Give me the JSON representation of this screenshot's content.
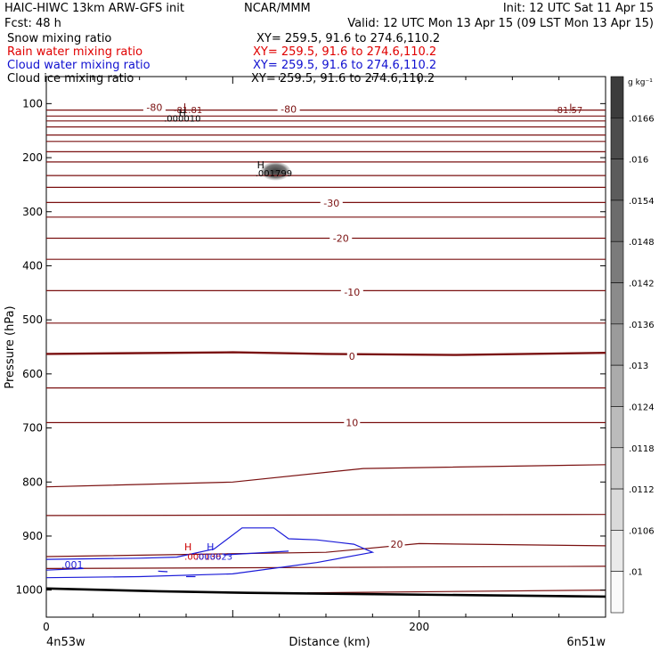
{
  "header": {
    "model": "HAIC-HIWC 13km ARW-GFS init",
    "center": "NCAR/MMM",
    "init": "Init: 12 UTC Sat 11 Apr 15",
    "fcst": "Fcst:    48 h",
    "valid": "Valid: 12 UTC Mon 13 Apr 15 (09 LST Mon 13 Apr 15)"
  },
  "fields": [
    {
      "label": "Snow mixing ratio",
      "xy": "XY= 259.5, 91.6 to 274.6,110.2",
      "color": "#000000"
    },
    {
      "label": "Rain water mixing ratio",
      "xy": "XY= 259.5, 91.6 to 274.6,110.2",
      "color": "#e00000"
    },
    {
      "label": "Cloud water mixing ratio",
      "xy": "XY= 259.5, 91.6 to 274.6,110.2",
      "color": "#1010d0"
    },
    {
      "label": "Cloud ice mixing ratio",
      "xy": "XY= 259.5, 91.6 to 274.6,110.2",
      "color": "#000000"
    }
  ],
  "colors": {
    "temperature": "#7a1010",
    "cloud_water": "#1a1ad8",
    "rain_water": "#cc0000",
    "ground": "#000000"
  },
  "chart_data": {
    "type": "contour",
    "xlabel": "Distance (km)",
    "ylabel": "Pressure (hPa)",
    "x_ticks": [
      0,
      200
    ],
    "xlim": [
      0,
      300
    ],
    "y_ticks": [
      100,
      200,
      300,
      400,
      500,
      600,
      700,
      800,
      900,
      1000
    ],
    "ylim": [
      50,
      1050
    ],
    "endpoints": {
      "left": "4n53w",
      "right": "6n51w"
    },
    "colorbar": {
      "unit": "g kg⁻¹",
      "ticks": [
        ".0166",
        ".016",
        ".0154",
        ".0148",
        ".0142",
        ".0136",
        ".013",
        ".0124",
        ".0118",
        ".0112",
        ".0106",
        ".01"
      ]
    },
    "isotherms": [
      {
        "p": [
          [
            0,
            112
          ],
          [
            300,
            112
          ]
        ]
      },
      {
        "p": [
          [
            0,
            123
          ],
          [
            300,
            123
          ]
        ]
      },
      {
        "p": [
          [
            0,
            132
          ],
          [
            300,
            132
          ]
        ]
      },
      {
        "p": [
          [
            0,
            143
          ],
          [
            300,
            143
          ]
        ]
      },
      {
        "p": [
          [
            0,
            158
          ],
          [
            300,
            158
          ]
        ]
      },
      {
        "p": [
          [
            0,
            170
          ],
          [
            300,
            170
          ]
        ]
      },
      {
        "p": [
          [
            0,
            189
          ],
          [
            300,
            189
          ]
        ]
      },
      {
        "p": [
          [
            0,
            208
          ],
          [
            300,
            208
          ]
        ]
      },
      {
        "p": [
          [
            0,
            233
          ],
          [
            300,
            233
          ]
        ]
      },
      {
        "p": [
          [
            0,
            255
          ],
          [
            300,
            255
          ]
        ]
      },
      {
        "p": [
          [
            0,
            283
          ],
          [
            300,
            283
          ]
        ]
      },
      {
        "p": [
          [
            0,
            310
          ],
          [
            300,
            310
          ]
        ]
      },
      {
        "p": [
          [
            0,
            349
          ],
          [
            300,
            349
          ]
        ]
      },
      {
        "p": [
          [
            0,
            388
          ],
          [
            300,
            388
          ]
        ]
      },
      {
        "p": [
          [
            0,
            446
          ],
          [
            300,
            446
          ]
        ]
      },
      {
        "p": [
          [
            0,
            506
          ],
          [
            300,
            506
          ]
        ]
      },
      {
        "p": [
          [
            0,
            563
          ],
          [
            100,
            560
          ],
          [
            150,
            563
          ],
          [
            220,
            565
          ],
          [
            300,
            561
          ]
        ],
        "bold": true
      },
      {
        "p": [
          [
            0,
            626
          ],
          [
            300,
            626
          ]
        ]
      },
      {
        "p": [
          [
            0,
            690
          ],
          [
            300,
            690
          ]
        ]
      },
      {
        "p": [
          [
            0,
            809
          ],
          [
            100,
            800
          ],
          [
            170,
            775
          ],
          [
            300,
            768
          ]
        ]
      },
      {
        "p": [
          [
            0,
            862
          ],
          [
            300,
            860
          ]
        ]
      },
      {
        "p": [
          [
            0,
            938
          ],
          [
            150,
            930
          ],
          [
            200,
            914
          ],
          [
            300,
            918
          ]
        ]
      },
      {
        "p": [
          [
            0,
            960
          ],
          [
            300,
            956
          ]
        ]
      },
      {
        "p": [
          [
            140,
            1005
          ],
          [
            300,
            1000
          ]
        ]
      }
    ],
    "contour_labels": [
      {
        "x": 58,
        "p": 107,
        "text": "-80"
      },
      {
        "x": 130,
        "p": 110,
        "text": "-80"
      },
      {
        "x": 153,
        "p": 284,
        "text": "-30"
      },
      {
        "x": 158,
        "p": 349,
        "text": "-20"
      },
      {
        "x": 164,
        "p": 449,
        "text": "-10"
      },
      {
        "x": 164,
        "p": 567,
        "text": "0"
      },
      {
        "x": 164,
        "p": 690,
        "text": "10"
      },
      {
        "x": 188,
        "p": 915,
        "text": "20"
      }
    ],
    "extrema": [
      {
        "x": 75,
        "p": 106,
        "text": "L"
      },
      {
        "x": 282,
        "p": 107,
        "text": "L"
      },
      {
        "x": 76,
        "p": 111,
        "text": "-81.81"
      },
      {
        "x": 280,
        "p": 111,
        "text": "-81.57"
      },
      {
        "x": 73,
        "p": 117,
        "text": "H"
      },
      {
        "x": 73,
        "p": 127,
        "text": ".000010"
      },
      {
        "x": 115,
        "p": 213,
        "text": "H"
      },
      {
        "x": 122,
        "p": 228,
        "text": ".001799"
      },
      {
        "x": 76,
        "p": 920,
        "text": "H"
      },
      {
        "x": 84,
        "p": 937,
        "text": ".000136"
      },
      {
        "x": 88,
        "p": 920,
        "text": "H"
      },
      {
        "x": 90,
        "p": 937,
        "text": ".000023"
      }
    ],
    "cloud_water": [
      {
        "p": [
          [
            0,
            943
          ],
          [
            50,
            941
          ],
          [
            70,
            939
          ],
          [
            90,
            924
          ],
          [
            105,
            885
          ],
          [
            122,
            885
          ],
          [
            130,
            905
          ],
          [
            145,
            907
          ],
          [
            165,
            915
          ],
          [
            175,
            930
          ],
          [
            145,
            949
          ],
          [
            100,
            970
          ],
          [
            50,
            975
          ],
          [
            0,
            977
          ]
        ]
      },
      {
        "p": [
          [
            0,
            963
          ],
          [
            20,
            960
          ]
        ]
      },
      {
        "p": [
          [
            60,
            965
          ],
          [
            65,
            966
          ]
        ]
      },
      {
        "p": [
          [
            75,
            975
          ],
          [
            80,
            975
          ]
        ]
      },
      {
        "p": [
          [
            95,
            935
          ],
          [
            130,
            928
          ]
        ]
      }
    ],
    "cloud_water_label": {
      "x": 14,
      "p": 959,
      "text": ".001"
    },
    "snow_blob": {
      "x": 123,
      "p": 225,
      "rx": 8,
      "rp": 17
    },
    "ground": [
      [
        0,
        997
      ],
      [
        60,
        1002
      ],
      [
        108,
        1005
      ],
      [
        300,
        1012
      ]
    ]
  }
}
